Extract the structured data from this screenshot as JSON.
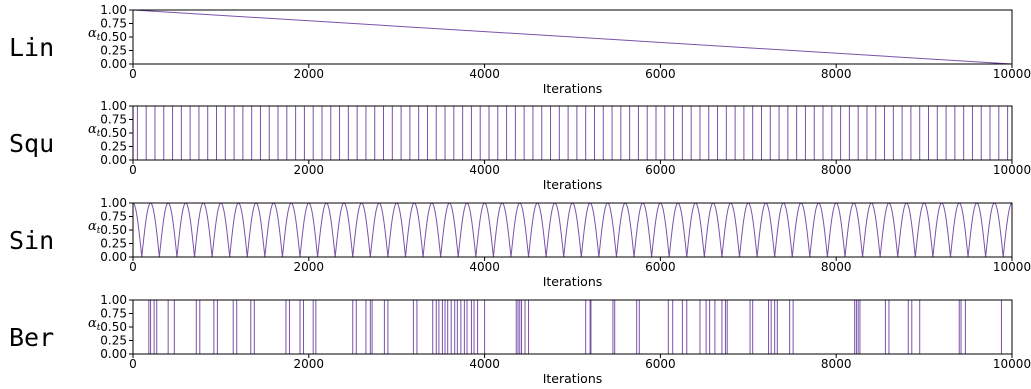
{
  "chart_data": [
    {
      "type": "line",
      "row_label": "Lin",
      "schedule": "linear",
      "ylabel_main": "α",
      "ylabel_sub": "t",
      "xlabel": "Iterations",
      "xlim": [
        0,
        10000
      ],
      "ylim": [
        0,
        1
      ],
      "xticks": [
        0,
        2000,
        4000,
        6000,
        8000,
        10000
      ],
      "yticks": [
        "0.00",
        "0.25",
        "0.50",
        "0.75",
        "1.00"
      ],
      "color": "#7b52ab",
      "series": [
        {
          "x": [
            0,
            10000
          ],
          "y": [
            1.0,
            0.0
          ]
        }
      ]
    },
    {
      "type": "line",
      "row_label": "Squ",
      "schedule": "square",
      "ylabel_main": "α",
      "ylabel_sub": "t",
      "xlabel": "Iterations",
      "xlim": [
        0,
        10000
      ],
      "ylim": [
        0,
        1
      ],
      "xticks": [
        0,
        2000,
        4000,
        6000,
        8000,
        10000
      ],
      "yticks": [
        "0.00",
        "0.25",
        "0.50",
        "0.75",
        "1.00"
      ],
      "color": "#7b52ab",
      "period": 200,
      "high": 1.0,
      "low": 0.0,
      "start_high": 50
    },
    {
      "type": "line",
      "row_label": "Sin",
      "schedule": "sine",
      "ylabel_main": "α",
      "ylabel_sub": "t",
      "xlabel": "Iterations",
      "xlim": [
        0,
        10000
      ],
      "ylim": [
        0,
        1
      ],
      "xticks": [
        0,
        2000,
        4000,
        6000,
        8000,
        10000
      ],
      "yticks": [
        "0.00",
        "0.25",
        "0.50",
        "0.75",
        "1.00"
      ],
      "color": "#7b52ab",
      "period": 200,
      "high": 1.0,
      "low": 0.0
    },
    {
      "type": "line",
      "row_label": "Ber",
      "schedule": "bernoulli",
      "ylabel_main": "α",
      "ylabel_sub": "t",
      "xlabel": "Iterations",
      "xlim": [
        0,
        10000
      ],
      "ylim": [
        0,
        1
      ],
      "xticks": [
        0,
        2000,
        4000,
        6000,
        8000,
        10000
      ],
      "yticks": [
        "0.00",
        "0.25",
        "0.50",
        "0.75",
        "1.00"
      ],
      "color": "#7b52ab",
      "series": [
        {
          "x": [
            0,
            180,
            200,
            240,
            270,
            400,
            470,
            720,
            760,
            920,
            960,
            1140,
            1180,
            1340,
            1380,
            1740,
            1780,
            1900,
            1940,
            2050,
            2080,
            2500,
            2540,
            2650,
            2700,
            2720,
            2860,
            2900,
            3190,
            3230,
            3410,
            3450,
            3480,
            3520,
            3550,
            3580,
            3620,
            3660,
            3690,
            3730,
            3770,
            3800,
            3850,
            3880,
            3920,
            4000,
            4360,
            4380,
            4400,
            4420,
            4460,
            4500,
            5150,
            5200,
            5210,
            5460,
            5480,
            5730,
            5760,
            6090,
            6140,
            6250,
            6300,
            6450,
            6520,
            6560,
            6620,
            6700,
            6740,
            6760,
            7020,
            7050,
            7230,
            7260,
            7300,
            7330,
            7470,
            7510,
            8210,
            8230,
            8250,
            8270,
            8560,
            8600,
            8820,
            8860,
            8950,
            9400,
            9420,
            9470,
            9880,
            10000
          ],
          "y": [
            1,
            0,
            1,
            0,
            1,
            0,
            1,
            0,
            1,
            0,
            1,
            0,
            1,
            0,
            1,
            0,
            1,
            0,
            1,
            0,
            1,
            0,
            1,
            0,
            1,
            0,
            1,
            0,
            1,
            0,
            1,
            0,
            1,
            0,
            1,
            0,
            1,
            0,
            1,
            0,
            1,
            0,
            1,
            0,
            1,
            0,
            1,
            0,
            1,
            0,
            1,
            0,
            1,
            0,
            1,
            0,
            1,
            0,
            1,
            0,
            1,
            0,
            1,
            0,
            1,
            0,
            1,
            0,
            1,
            0,
            1,
            0,
            1,
            0,
            1,
            0,
            1,
            0,
            1,
            0,
            1,
            0,
            1,
            0,
            1,
            0,
            1,
            0,
            1,
            0,
            1,
            0
          ]
        }
      ]
    }
  ]
}
